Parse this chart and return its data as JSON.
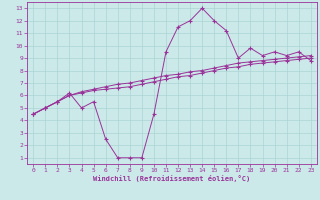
{
  "xlabel": "Windchill (Refroidissement éolien,°C)",
  "x": [
    0,
    1,
    2,
    3,
    4,
    5,
    6,
    7,
    8,
    9,
    10,
    11,
    12,
    13,
    14,
    15,
    16,
    17,
    18,
    19,
    20,
    21,
    22,
    23
  ],
  "line1": [
    4.5,
    5.0,
    5.5,
    6.2,
    5.0,
    5.5,
    2.5,
    1.0,
    1.0,
    1.0,
    4.5,
    9.5,
    11.5,
    12.0,
    13.0,
    12.0,
    11.2,
    9.0,
    9.8,
    9.2,
    9.5,
    9.2,
    9.5,
    8.8
  ],
  "line2": [
    4.5,
    5.0,
    5.5,
    6.0,
    6.2,
    6.4,
    6.5,
    6.6,
    6.7,
    6.9,
    7.1,
    7.3,
    7.5,
    7.6,
    7.8,
    8.0,
    8.2,
    8.3,
    8.5,
    8.6,
    8.7,
    8.8,
    8.9,
    9.0
  ],
  "line3": [
    4.5,
    5.0,
    5.5,
    6.0,
    6.3,
    6.5,
    6.7,
    6.9,
    7.0,
    7.2,
    7.4,
    7.6,
    7.7,
    7.9,
    8.0,
    8.2,
    8.4,
    8.6,
    8.7,
    8.8,
    8.9,
    9.0,
    9.1,
    9.2
  ],
  "line_color": "#993399",
  "bg_color": "#cce9e9",
  "grid_color": "#aad4d4",
  "text_color": "#993399",
  "spine_color": "#993399",
  "ylim_min": 0.5,
  "ylim_max": 13.5,
  "xlim_min": -0.5,
  "xlim_max": 23.5
}
